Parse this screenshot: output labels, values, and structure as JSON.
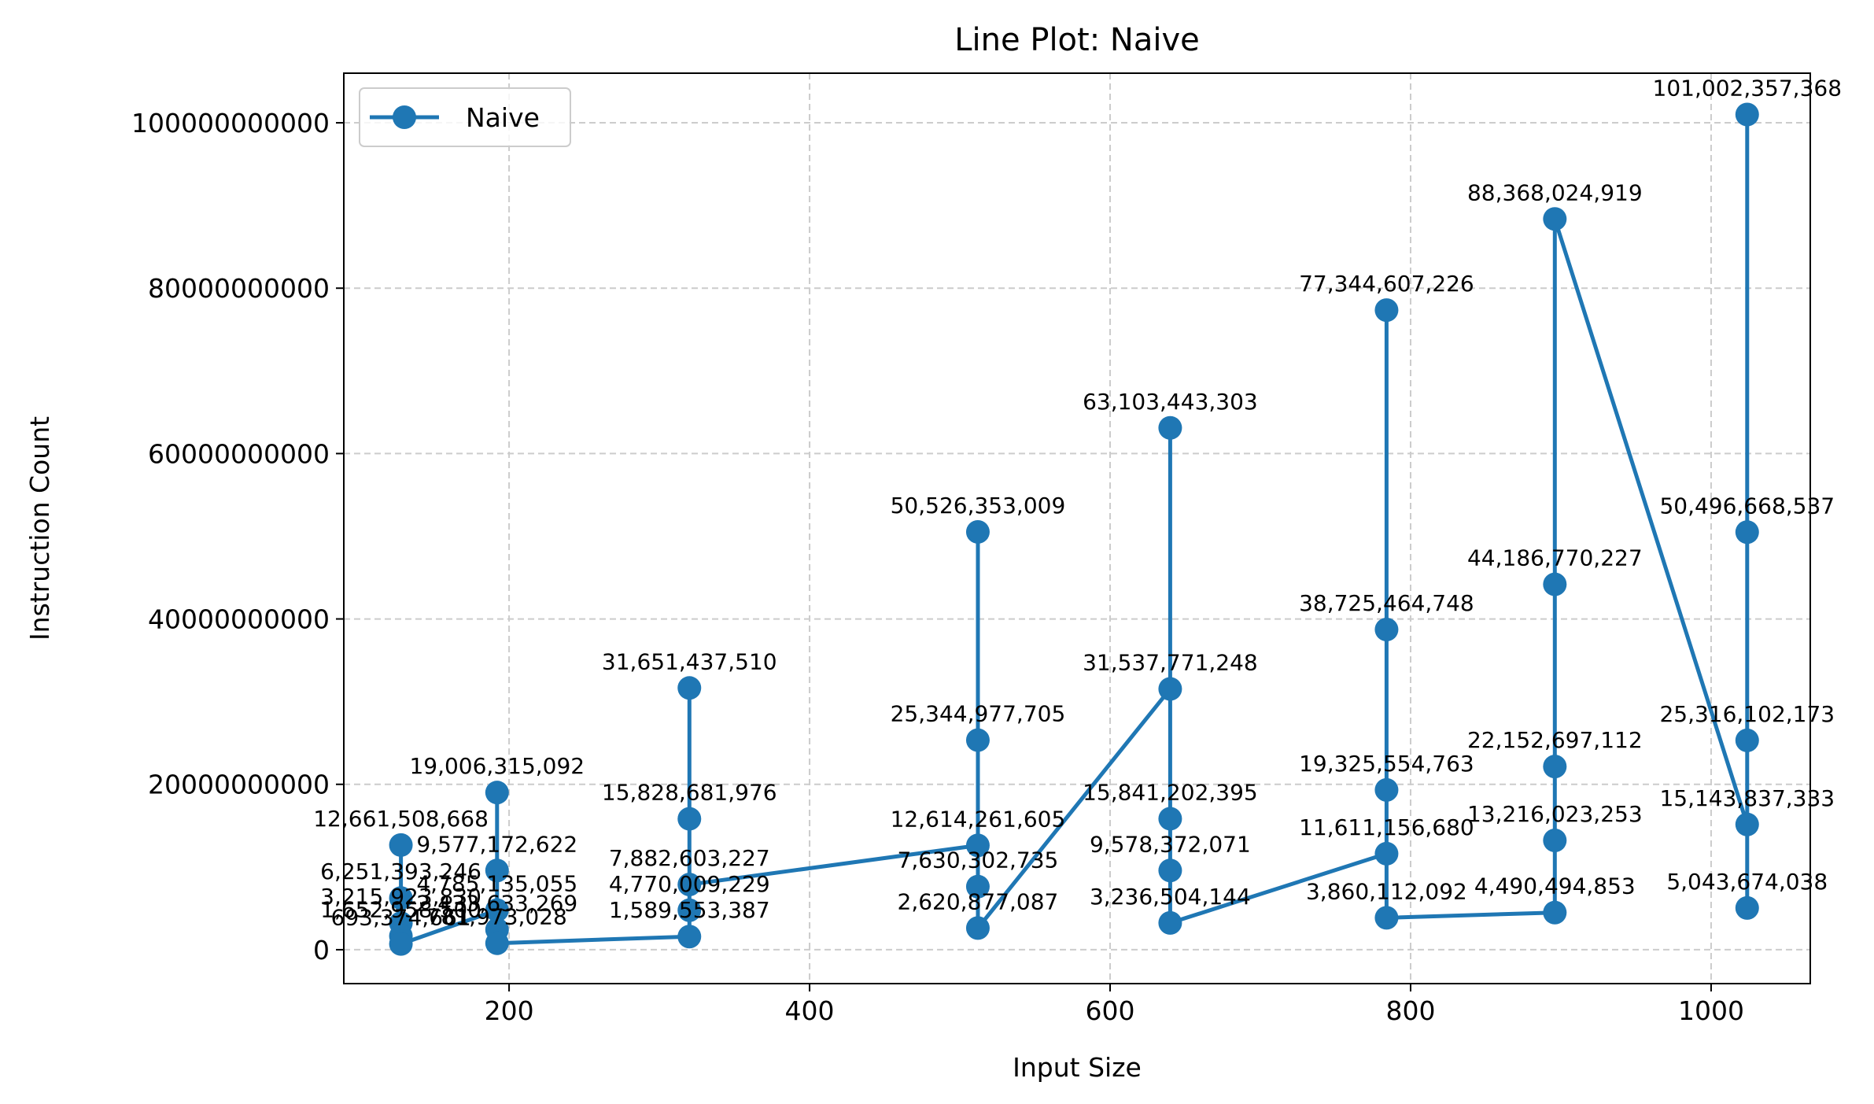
{
  "colors": {
    "series": "#1f77b4",
    "grid": "#cccccc",
    "axis": "#000000",
    "background": "#ffffff"
  },
  "chart_data": {
    "type": "line",
    "title": "Line Plot: Naive",
    "xlabel": "Input Size",
    "ylabel": "Instruction Count",
    "xlim": [
      90,
      1066
    ],
    "ylim": [
      -4100000000,
      106000000000
    ],
    "xticks": [
      200,
      400,
      600,
      800,
      1000
    ],
    "xtick_labels": [
      "200",
      "400",
      "600",
      "800",
      "1000"
    ],
    "yticks": [
      0,
      20000000000,
      40000000000,
      60000000000,
      80000000000,
      100000000000
    ],
    "ytick_labels": [
      "0",
      "20000000000",
      "40000000000",
      "60000000000",
      "80000000000",
      "100000000000"
    ],
    "grid": true,
    "legend": "upper-left",
    "series": [
      {
        "name": "Naive",
        "marker": "circle",
        "points": [
          {
            "x": 128,
            "y": 12661508668,
            "label": "12,661,508,668"
          },
          {
            "x": 128,
            "y": 6251393246,
            "label": "6,251,393,246"
          },
          {
            "x": 128,
            "y": 3215923830,
            "label": "3,215,923,830"
          },
          {
            "x": 128,
            "y": 1652958500,
            "label": "1,652,958,500"
          },
          {
            "x": 128,
            "y": 693374661,
            "label": "693,374,661"
          },
          {
            "x": 192,
            "y": 4785135055,
            "label": "4,785,135,055"
          },
          {
            "x": 192,
            "y": 19006315092,
            "label": "19,006,315,092"
          },
          {
            "x": 192,
            "y": 9577172622,
            "label": "9,577,172,622"
          },
          {
            "x": 192,
            "y": 2433633269,
            "label": "2,433,633,269"
          },
          {
            "x": 192,
            "y": 781973028,
            "label": "781,973,028"
          },
          {
            "x": 320,
            "y": 1589553387,
            "label": "1,589,553,387"
          },
          {
            "x": 320,
            "y": 4770009229,
            "label": "4,770,009,229"
          },
          {
            "x": 320,
            "y": 15828681976,
            "label": "15,828,681,976"
          },
          {
            "x": 320,
            "y": 31651437510,
            "label": "31,651,437,510"
          },
          {
            "x": 320,
            "y": 7882603227,
            "label": "7,882,603,227"
          },
          {
            "x": 512,
            "y": 12614261605,
            "label": "12,614,261,605"
          },
          {
            "x": 512,
            "y": 50526353009,
            "label": "50,526,353,009"
          },
          {
            "x": 512,
            "y": 25344977705,
            "label": "25,344,977,705"
          },
          {
            "x": 512,
            "y": 7630302735,
            "label": "7,630,302,735"
          },
          {
            "x": 512,
            "y": 2620877087,
            "label": "2,620,877,087"
          },
          {
            "x": 640,
            "y": 31537771248,
            "label": "31,537,771,248"
          },
          {
            "x": 640,
            "y": 63103443303,
            "label": "63,103,443,303"
          },
          {
            "x": 640,
            "y": 15841202395,
            "label": "15,841,202,395"
          },
          {
            "x": 640,
            "y": 9578372071,
            "label": "9,578,372,071"
          },
          {
            "x": 640,
            "y": 3236504144,
            "label": "3,236,504,144"
          },
          {
            "x": 784,
            "y": 11611156680,
            "label": "11,611,156,680"
          },
          {
            "x": 784,
            "y": 19325554763,
            "label": "19,325,554,763"
          },
          {
            "x": 784,
            "y": 77344607226,
            "label": "77,344,607,226"
          },
          {
            "x": 784,
            "y": 38725464748,
            "label": "38,725,464,748"
          },
          {
            "x": 784,
            "y": 3860112092,
            "label": "3,860,112,092"
          },
          {
            "x": 896,
            "y": 4490494853,
            "label": "4,490,494,853"
          },
          {
            "x": 896,
            "y": 13216023253,
            "label": "13,216,023,253"
          },
          {
            "x": 896,
            "y": 22152697112,
            "label": "22,152,697,112"
          },
          {
            "x": 896,
            "y": 44186770227,
            "label": "44,186,770,227"
          },
          {
            "x": 896,
            "y": 88368024919,
            "label": "88,368,024,919"
          },
          {
            "x": 1024,
            "y": 15143837333,
            "label": "15,143,837,333"
          },
          {
            "x": 1024,
            "y": 101002357368,
            "label": "101,002,357,368"
          },
          {
            "x": 1024,
            "y": 50496668537,
            "label": "50,496,668,537"
          },
          {
            "x": 1024,
            "y": 25316102173,
            "label": "25,316,102,173"
          },
          {
            "x": 1024,
            "y": 5043674038,
            "label": "5,043,674,038"
          }
        ]
      }
    ]
  }
}
